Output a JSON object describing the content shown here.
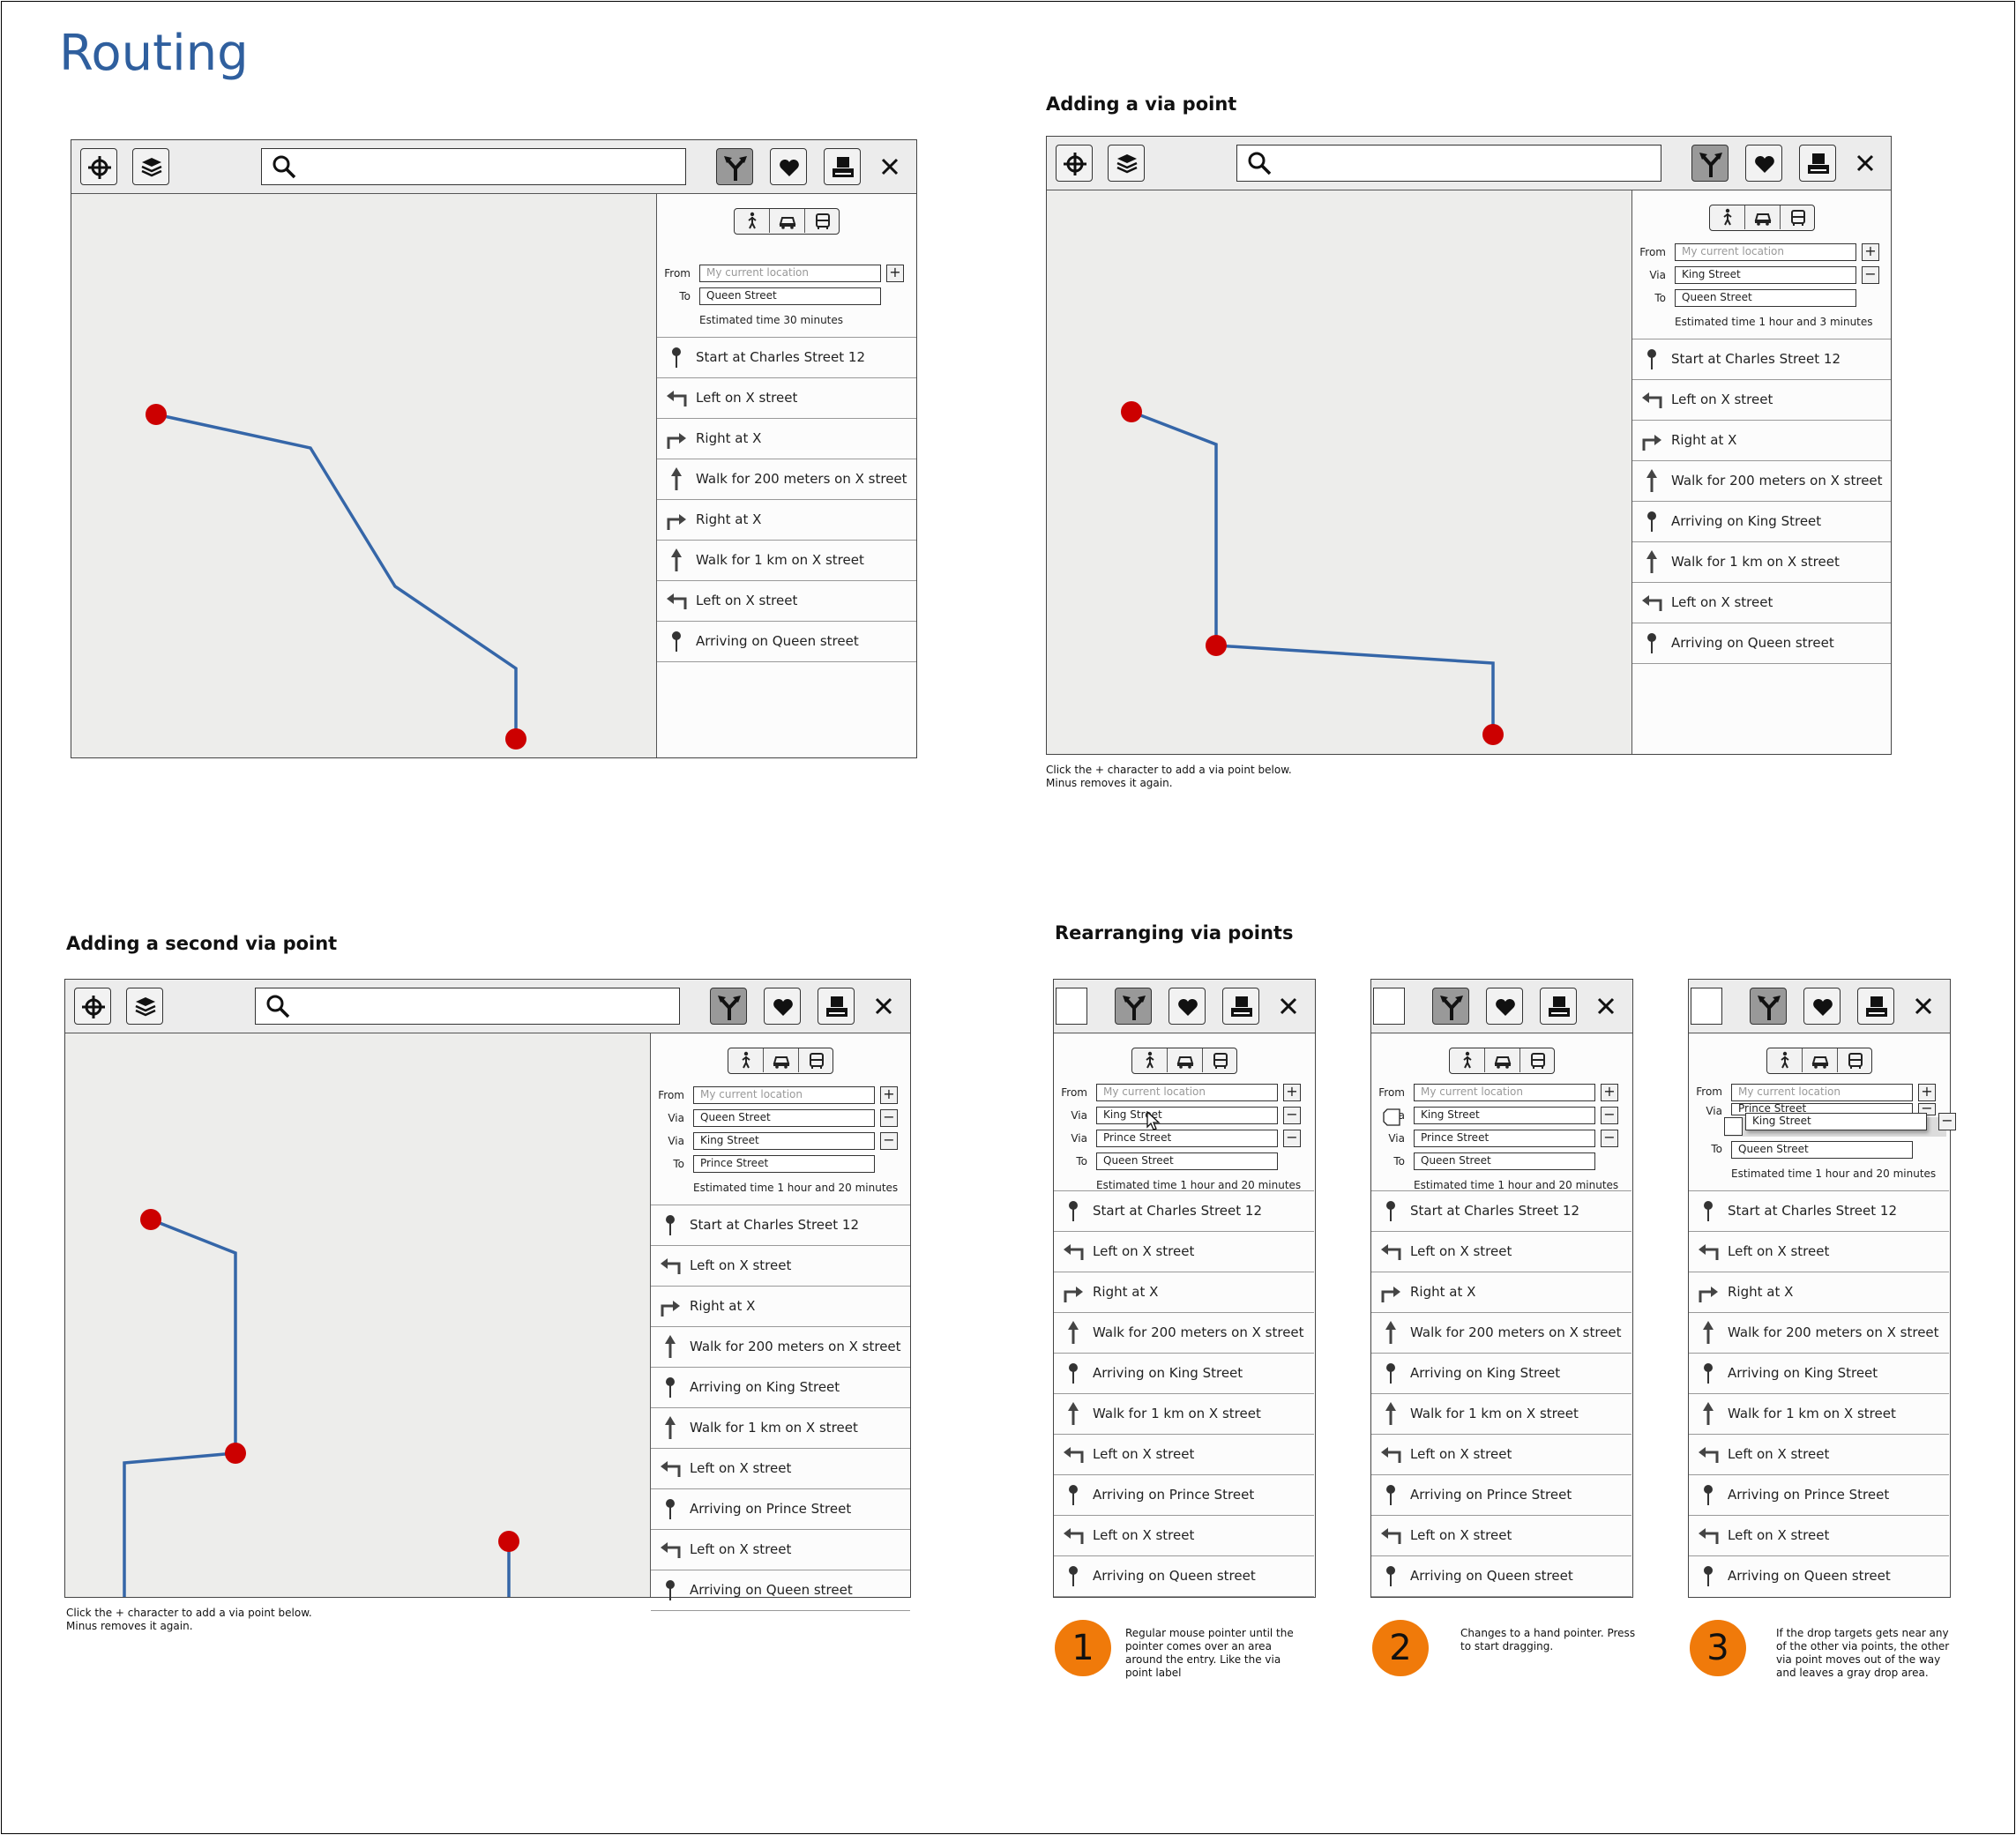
{
  "page": {
    "title": "Routing"
  },
  "sections": {
    "via1": "Adding a via point",
    "via2": "Adding a second via point",
    "rearrange": "Rearranging via points"
  },
  "labels": {
    "from": "From",
    "to": "To",
    "via": "Via",
    "plus": "+",
    "minus": "−"
  },
  "fields": {
    "my_location": "My current location",
    "queen": "Queen Street",
    "king": "King Street",
    "prince": "Prince Street"
  },
  "estimates": {
    "e30": "Estimated time 30 minutes",
    "e103": "Estimated time 1 hour and 3 minutes",
    "e120": "Estimated time 1 hour and 20 minutes"
  },
  "steps": {
    "start": "Start at Charles Street 12",
    "left": "Left on X street",
    "right": "Right at X",
    "walk200": "Walk for 200 meters on X street",
    "walk1km": "Walk for 1 km on X street",
    "arr_queen": "Arriving on Queen street",
    "arr_king": "Arriving on King Street",
    "arr_prince": "Arriving on Prince Street"
  },
  "notes": {
    "via_hint": "Click the + character to add a via point below.\nMinus removes it again.",
    "step1_num": "1",
    "step1": "Regular mouse pointer until the pointer comes over an area around the entry. Like the via point label",
    "step2_num": "2",
    "step2": "Changes to a hand pointer. Press to start dragging.",
    "step3_num": "3",
    "step3": "If the drop targets gets near any of the other via points, the other via point moves out of the way and leaves a gray drop area."
  },
  "icons": [
    "locate-icon",
    "layers-icon",
    "search-icon",
    "route-icon",
    "favorite-icon",
    "print-icon",
    "close-icon",
    "walk-icon",
    "car-icon",
    "bus-icon",
    "pin-icon",
    "turn-left-icon",
    "turn-right-icon",
    "straight-icon",
    "hand-cursor-icon"
  ],
  "colors": {
    "route": "#3566a8",
    "marker": "#cc0000",
    "accent_title": "#2f5f9e",
    "step_badge": "#f07a0a",
    "map_bg": "#ededeb"
  }
}
